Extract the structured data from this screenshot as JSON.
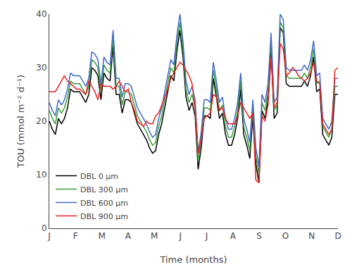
{
  "chart_data": {
    "type": "line",
    "xlabel": "Time (months)",
    "ylabel": "TOU (mmol m⁻² d⁻¹)",
    "x": [
      0,
      0.115789,
      0.231579,
      0.347368,
      0.463158,
      0.578947,
      0.694737,
      0.810526,
      0.926316,
      1.042105,
      1.157895,
      1.273684,
      1.389474,
      1.505263,
      1.621053,
      1.736842,
      1.852632,
      1.968421,
      2.084211,
      2.2,
      2.315789,
      2.431579,
      2.547368,
      2.663158,
      2.778947,
      2.894737,
      3.010526,
      3.126316,
      3.242105,
      3.357895,
      3.473684,
      3.589474,
      3.705263,
      3.821053,
      3.936842,
      4.052632,
      4.168421,
      4.284211,
      4.4,
      4.515789,
      4.631579,
      4.747368,
      4.863158,
      4.978947,
      5.094737,
      5.210526,
      5.326316,
      5.442105,
      5.557895,
      5.673684,
      5.789474,
      5.905263,
      6.021053,
      6.136842,
      6.252632,
      6.368421,
      6.484211,
      6.6,
      6.715789,
      6.831579,
      6.947368,
      7.063158,
      7.178947,
      7.294737,
      7.410526,
      7.526316,
      7.642105,
      7.757895,
      7.873684,
      7.989474,
      8.105263,
      8.221053,
      8.336842,
      8.452632,
      8.568421,
      8.684211,
      8.8,
      8.915789,
      9.031579,
      9.147368,
      9.263158,
      9.378947,
      9.494737,
      9.610526,
      9.726316,
      9.842105,
      9.957895,
      10.073684,
      10.189474,
      10.305263,
      10.421053,
      10.536842,
      10.652632,
      10.768421,
      10.884211,
      11
    ],
    "xlim": [
      0,
      11
    ],
    "xticks": [
      {
        "value": 0,
        "label": "J"
      },
      {
        "value": 1,
        "label": "F"
      },
      {
        "value": 2,
        "label": "M"
      },
      {
        "value": 3,
        "label": "A"
      },
      {
        "value": 4,
        "label": "M"
      },
      {
        "value": 5,
        "label": "J"
      },
      {
        "value": 6,
        "label": "J"
      },
      {
        "value": 7,
        "label": "A"
      },
      {
        "value": 8,
        "label": "S"
      },
      {
        "value": 9,
        "label": "O"
      },
      {
        "value": 10,
        "label": "N"
      },
      {
        "value": 11,
        "label": "D"
      }
    ],
    "ylim": [
      0,
      40
    ],
    "yticks": [
      0,
      10,
      20,
      30,
      40
    ],
    "grid": false,
    "legend": "lower left",
    "series": [
      {
        "name": "DBL 0 μm",
        "color": "#000000",
        "values": [
          20.0,
          18.5,
          17.5,
          20.5,
          19.5,
          20.5,
          22.5,
          26.0,
          25.5,
          25.5,
          25.5,
          24.5,
          23.5,
          25.0,
          30.0,
          29.5,
          28.5,
          24.0,
          29.0,
          28.0,
          27.5,
          34.0,
          25.0,
          25.0,
          21.5,
          24.0,
          24.0,
          23.5,
          21.5,
          19.5,
          18.5,
          17.5,
          16.5,
          15.0,
          14.0,
          14.5,
          17.5,
          19.5,
          22.5,
          25.0,
          28.5,
          27.5,
          33.0,
          37.0,
          32.0,
          24.5,
          22.0,
          23.5,
          21.0,
          11.0,
          15.0,
          21.0,
          21.0,
          20.5,
          28.0,
          24.5,
          20.5,
          21.5,
          17.5,
          15.5,
          15.5,
          17.5,
          20.5,
          26.0,
          17.5,
          15.5,
          13.0,
          21.0,
          12.0,
          8.5,
          22.0,
          20.5,
          24.0,
          33.5,
          20.5,
          21.5,
          37.5,
          36.5,
          27.0,
          26.5,
          26.5,
          26.5,
          26.5,
          26.5,
          27.5,
          26.5,
          28.5,
          32.0,
          25.5,
          26.0,
          17.5,
          16.5,
          15.5,
          17.0,
          25.0,
          25.0
        ]
      },
      {
        "name": "DBL 300 μm",
        "color": "#3a9e3a",
        "values": [
          22.0,
          20.5,
          19.5,
          22.5,
          21.5,
          22.5,
          24.5,
          27.5,
          27.0,
          27.0,
          27.0,
          26.0,
          25.0,
          26.5,
          31.5,
          31.0,
          30.0,
          25.5,
          30.5,
          29.5,
          29.0,
          35.5,
          26.5,
          26.5,
          23.0,
          25.5,
          25.5,
          25.0,
          23.0,
          21.0,
          20.0,
          19.0,
          18.0,
          16.5,
          15.5,
          16.0,
          19.0,
          21.0,
          24.0,
          26.5,
          30.0,
          29.0,
          34.5,
          38.5,
          33.5,
          26.0,
          23.5,
          25.0,
          22.5,
          12.5,
          16.5,
          22.5,
          22.5,
          22.0,
          29.5,
          26.0,
          22.0,
          23.0,
          19.0,
          17.0,
          17.0,
          19.0,
          22.0,
          27.5,
          19.0,
          17.0,
          14.5,
          22.5,
          13.5,
          10.0,
          23.5,
          22.0,
          25.5,
          35.0,
          22.0,
          23.0,
          38.5,
          37.5,
          28.5,
          28.0,
          28.0,
          28.0,
          28.0,
          28.0,
          29.0,
          28.0,
          30.0,
          33.5,
          27.0,
          27.5,
          19.0,
          18.0,
          17.0,
          18.5,
          26.5,
          26.5
        ]
      },
      {
        "name": "DBL 600 μm",
        "color": "#4169c8",
        "values": [
          23.5,
          22.0,
          21.0,
          24.0,
          23.0,
          24.0,
          26.0,
          29.0,
          28.5,
          28.5,
          28.5,
          27.5,
          26.5,
          28.0,
          33.0,
          32.5,
          31.5,
          27.0,
          32.0,
          31.0,
          30.5,
          37.0,
          28.0,
          28.0,
          24.5,
          27.0,
          27.0,
          26.5,
          24.5,
          22.5,
          21.5,
          20.5,
          19.5,
          18.0,
          17.0,
          17.5,
          20.5,
          22.5,
          25.5,
          28.0,
          31.5,
          30.5,
          36.0,
          40.0,
          35.0,
          27.5,
          25.0,
          26.5,
          24.0,
          14.0,
          18.0,
          24.0,
          24.0,
          23.5,
          31.0,
          27.5,
          23.5,
          24.5,
          20.5,
          18.5,
          18.5,
          20.5,
          23.5,
          29.0,
          20.5,
          18.5,
          16.0,
          24.0,
          15.0,
          11.5,
          25.0,
          23.5,
          27.0,
          36.5,
          23.5,
          24.5,
          40.0,
          39.0,
          30.0,
          29.5,
          29.5,
          29.5,
          29.5,
          29.5,
          30.5,
          29.5,
          31.5,
          35.0,
          28.5,
          29.0,
          20.5,
          19.5,
          18.5,
          20.0,
          28.0,
          28.0
        ]
      },
      {
        "name": "DBL 900 μm",
        "color": "#e82020",
        "values": [
          25.5,
          25.5,
          25.5,
          26.5,
          27.5,
          28.5,
          27.5,
          27.0,
          26.5,
          26.0,
          26.0,
          25.5,
          25.0,
          27.5,
          26.5,
          25.5,
          24.0,
          27.0,
          26.5,
          26.5,
          26.5,
          26.0,
          26.5,
          27.5,
          26.5,
          25.5,
          26.0,
          23.5,
          22.0,
          20.0,
          19.5,
          19.0,
          20.0,
          19.5,
          19.5,
          21.0,
          21.5,
          23.0,
          24.5,
          26.0,
          28.0,
          29.0,
          30.0,
          31.0,
          30.5,
          29.5,
          28.5,
          27.0,
          22.5,
          14.0,
          16.5,
          20.5,
          21.0,
          21.5,
          25.0,
          24.5,
          22.0,
          22.5,
          20.5,
          19.5,
          19.5,
          19.5,
          21.0,
          23.5,
          22.5,
          21.5,
          20.5,
          21.5,
          9.0,
          8.5,
          21.0,
          20.0,
          23.0,
          32.0,
          22.5,
          23.5,
          34.5,
          33.5,
          28.5,
          29.0,
          30.0,
          29.5,
          28.5,
          28.0,
          27.5,
          28.0,
          29.0,
          31.0,
          27.5,
          27.0,
          19.5,
          18.5,
          17.5,
          18.5,
          29.5,
          30.0
        ]
      }
    ]
  }
}
